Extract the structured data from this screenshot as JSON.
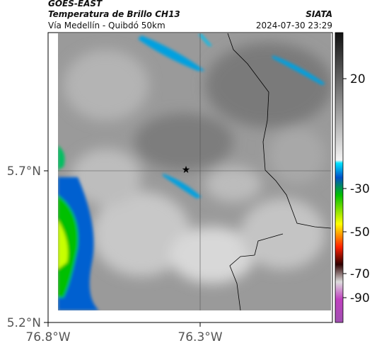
{
  "header": {
    "title": "GOES-EAST",
    "subtitle": "Temperatura de Brillo CH13",
    "region": "Vía Medellín - Quibdó 50km",
    "source": "SIATA",
    "timestamp": "2024-07-30 23:29"
  },
  "map": {
    "lat_labels": [
      "5.7°N",
      "5.2°N"
    ],
    "lon_labels": [
      "76.8°W",
      "76.3°W"
    ]
  },
  "colorbar": {
    "ticks": [
      20,
      -30,
      -50,
      -70,
      -90
    ]
  }
}
